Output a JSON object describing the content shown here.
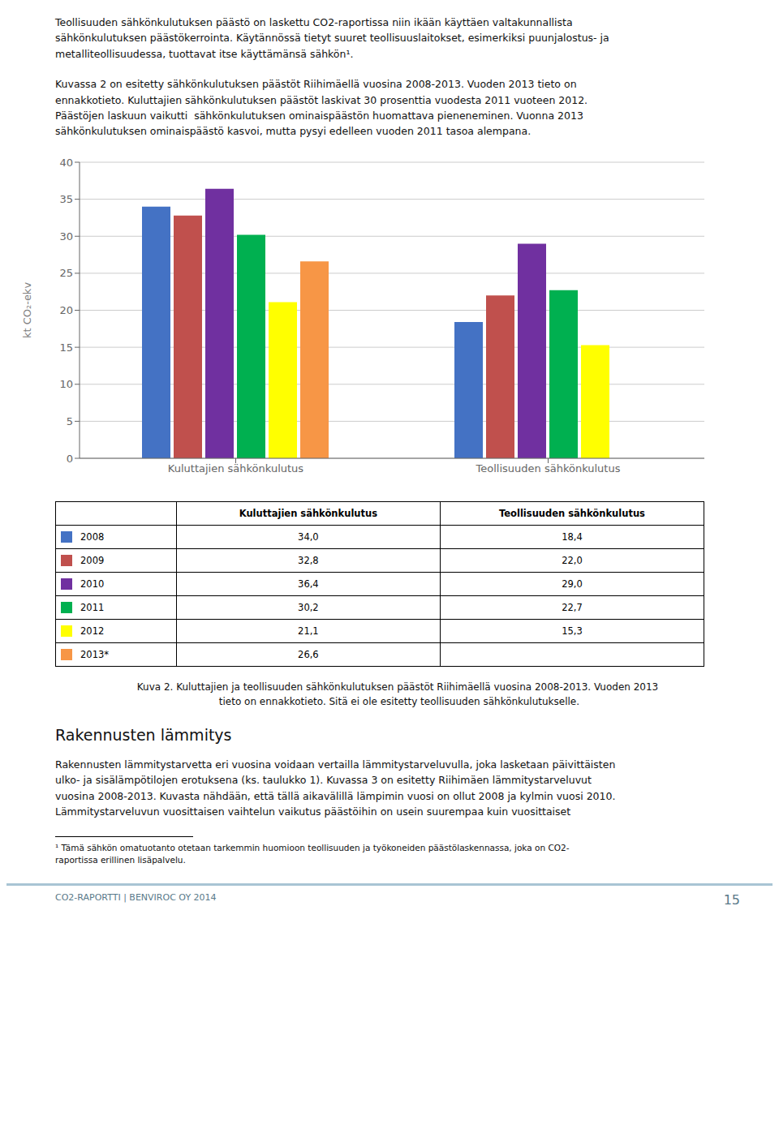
{
  "chart_data": {
    "type": "bar",
    "categories": [
      "Kuluttajien sähkönkulutus",
      "Teollisuuden sähkönkulutus"
    ],
    "series": [
      {
        "name": "2008",
        "color": "#4472C4",
        "values": [
          34.0,
          18.4
        ],
        "value_labels": [
          "34,0",
          "18,4"
        ]
      },
      {
        "name": "2009",
        "color": "#C0504D",
        "values": [
          32.8,
          22.0
        ],
        "value_labels": [
          "32,8",
          "22,0"
        ]
      },
      {
        "name": "2010",
        "color": "#7030A0",
        "values": [
          36.4,
          29.0
        ],
        "value_labels": [
          "36,4",
          "29,0"
        ]
      },
      {
        "name": "2011",
        "color": "#00B050",
        "values": [
          30.2,
          22.7
        ],
        "value_labels": [
          "30,2",
          "22,7"
        ]
      },
      {
        "name": "2012",
        "color": "#FFFF00",
        "values": [
          21.1,
          15.3
        ],
        "value_labels": [
          "21,1",
          "15,3"
        ]
      },
      {
        "name": "2013*",
        "color": "#F79646",
        "values": [
          26.6,
          null
        ],
        "value_labels": [
          "26,6",
          null
        ]
      }
    ],
    "y_label": "kt CO₂-ekv",
    "ylim": [
      0,
      40
    ],
    "yticks": [
      0,
      5,
      10,
      15,
      20,
      25,
      30,
      35,
      40
    ],
    "grid": true,
    "legend": "bottom",
    "annotations": [
      "Teollisuuden sähkönkulutuksen päästö on laskettu CO2-raportissa niin ikään käyttäen valtakunnallista\nsähkönkulutuksen päästökerrointa. Käytännössä tietyt suuret teollisuuslaitokset, esimerkiksi puunjalostus- ja\nmetalliteollisuudessa, tuottavat itse käyttämänsä sähkön¹.",
      "Kuvassa 2 on esitetty sähkönkulutuksen päästöt Riihimäellä vuosina 2008-2013. Vuoden 2013 tieto on\nennakkotieto. Kuluttajien sähkönkulutuksen päästöt laskivat 30 prosenttia vuodesta 2011 vuoteen 2012.\nPäästöjen laskuun vaikutti  sähkönkulutuksen ominaispäästön huomattava pieneneminen. Vuonna 2013\nsähkönkulutuksen ominaispäästö kasvoi, mutta pysyi edelleen vuoden 2011 tasoa alempana.",
      "Kuva 2. Kuluttajien ja teollisuuden sähkönkulutuksen päästöt Riihimäellä vuosina 2008-2013. Vuoden 2013\n tieto on ennakkotieto. Sitä ei ole esitetty teollisuuden sähkönkulutukselle.",
      "Rakennusten lämmitys",
      "Rakennusten lämmitystarvetta eri vuosina voidaan vertailla lämmitystarveluvulla, joka lasketaan päivittäisten\nulko- ja sisälämpötilojen erotuksena (ks. taulukko 1). Kuvassa 3 on esitetty Riihimäen lämmitystarveluvut\nvuosina 2008-2013. Kuvasta nähdään, että tällä aikavälillä lämpimin vuosi on ollut 2008 ja kylmin vuosi 2010.\nLämmitystarveluvun vuosittaisen vaihtelun vaikutus päästöihin on usein suurempaa kuin vuosittaiset",
      "¹ Tämä sähkön omatuotanto otetaan tarkemmin huomioon teollisuuden ja työkoneiden päästölaskennassa, joka on CO2-\nraportissa erillinen lisäpalvelu.",
      "CO2-RAPORTTI | BENVIROC OY 2014",
      "15"
    ]
  }
}
